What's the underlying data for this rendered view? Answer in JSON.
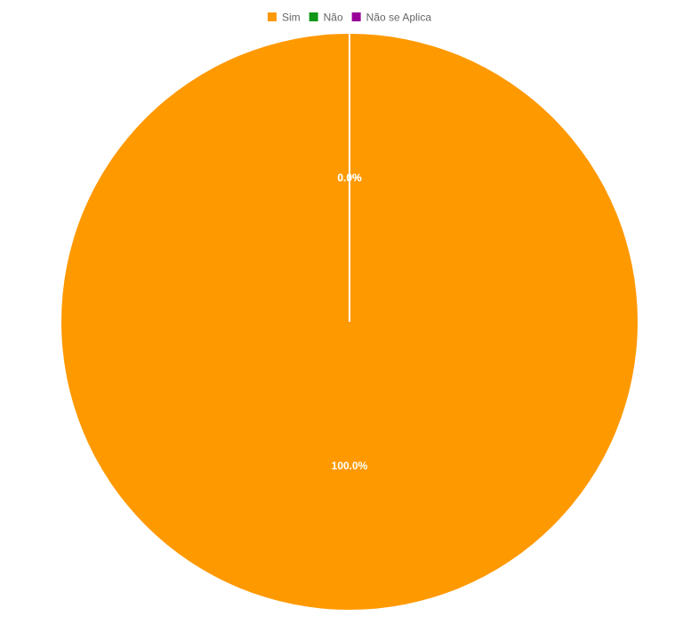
{
  "chart_data": {
    "type": "pie",
    "title": "",
    "legend_position": "top-center",
    "categories": [
      "Sim",
      "Não",
      "Não se Aplica"
    ],
    "values": [
      100.0,
      0.0,
      0.0
    ],
    "value_labels": [
      "100.0%",
      "0.0%",
      "0.0%"
    ],
    "colors": [
      "#ff9900",
      "#109618",
      "#990099"
    ],
    "slice_border_color": "#ffffff"
  }
}
